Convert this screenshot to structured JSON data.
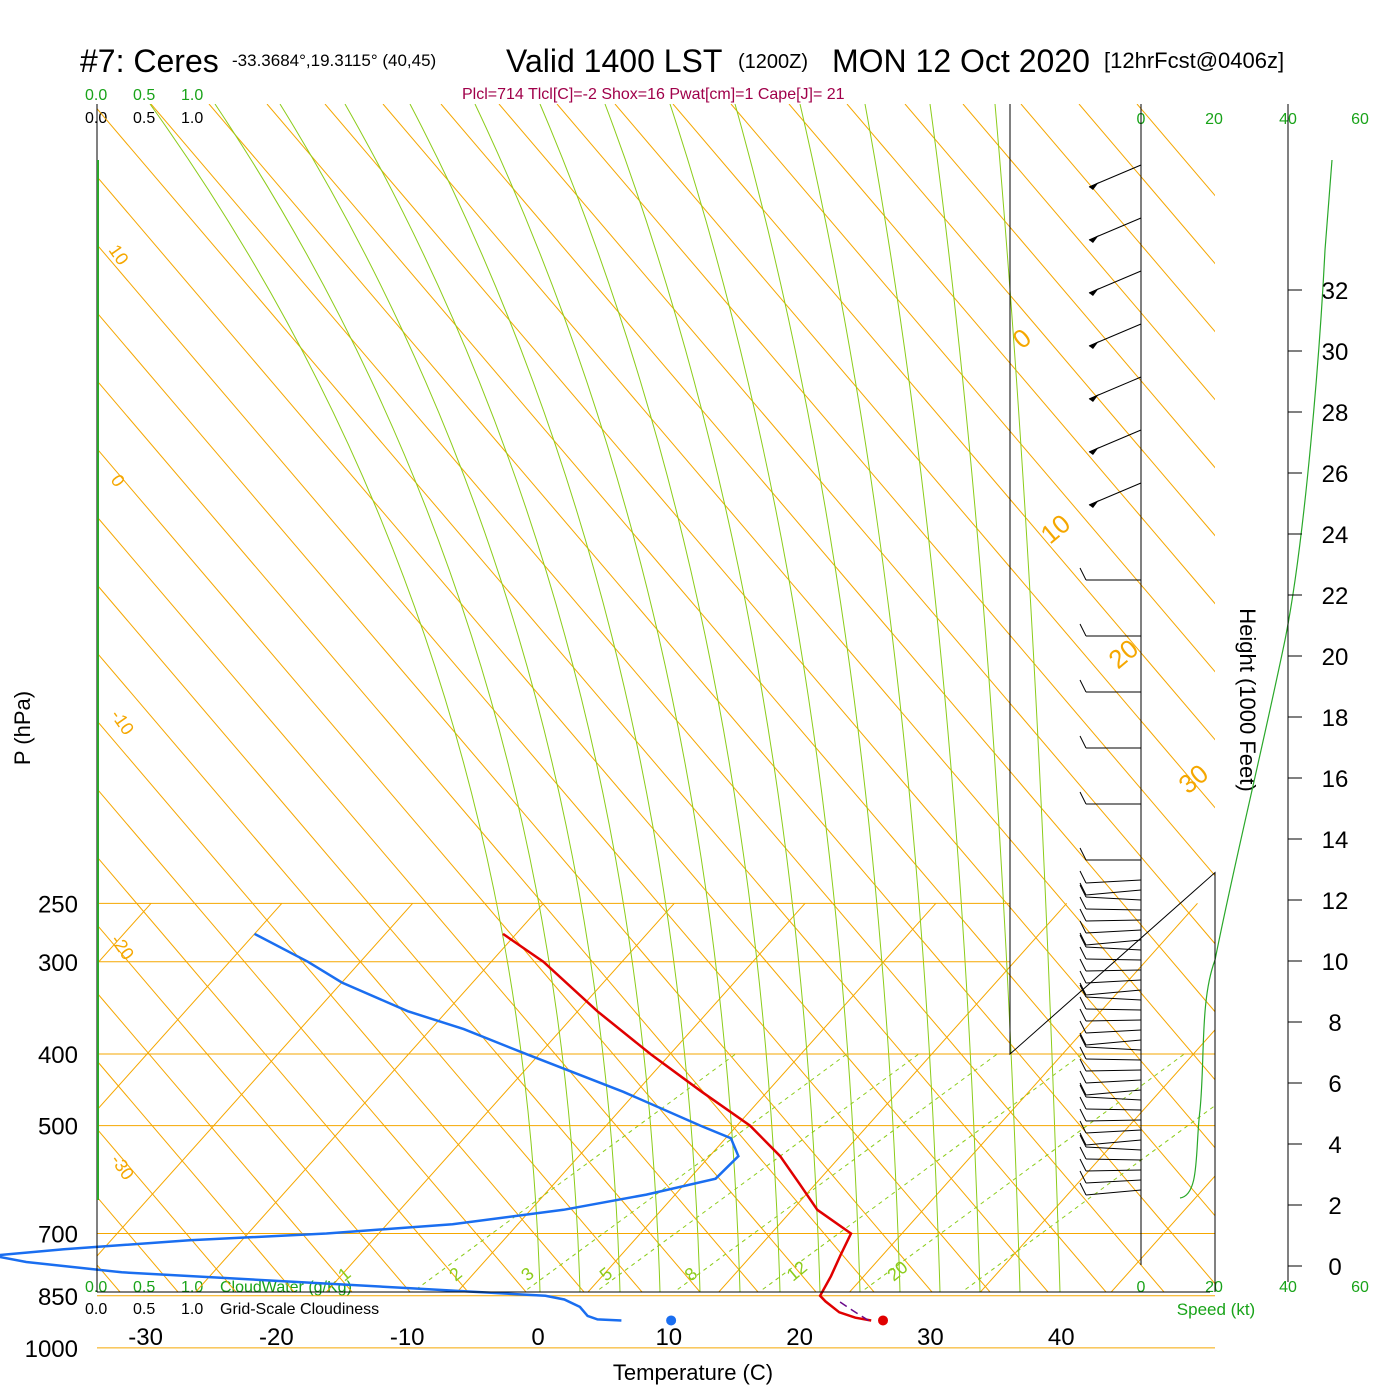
{
  "title": {
    "station": "#7: Ceres",
    "coords": "-33.3684°,19.3115° (40,45)",
    "valid": "Valid 1400 LST",
    "zulu": "(1200Z)",
    "date": "MON 12 Oct 2020",
    "forecast": "[12hrFcst@0406z]"
  },
  "indices_line": "Plcl=714 Tlcl[C]=-2 Shox=16 Pwat[cm]=1 Cape[J]= 21",
  "colors": {
    "isotherm": "#f5a700",
    "dry_adiabat": "#8ccc1a",
    "mixing_ratio": "#8ccc1a",
    "temperature": "#e00000",
    "dewpoint": "#1a6ef0",
    "parcel": "#6a0a8a",
    "green_text": "#19a319",
    "indices_text": "#a0004a"
  },
  "scales": {
    "cloudwater_top": [
      "0.0",
      "0.5",
      "1.0"
    ],
    "cloudiness_top": [
      "0.0",
      "0.5",
      "1.0"
    ],
    "cloudwater_bottom": [
      "0.0",
      "0.5",
      "1.0"
    ],
    "cloudiness_bottom": [
      "0.0",
      "0.5",
      "1.0"
    ],
    "cloudwater_label": "CloudWater (g/Kg)",
    "cloudiness_label": "Grid-Scale Cloudiness",
    "speed_ticks": [
      "0",
      "20",
      "40",
      "60"
    ],
    "speed_label": "Speed (kt)"
  },
  "chart_data": {
    "type": "skew-t",
    "xlabel": "Temperature (C)",
    "ylabel": "P (hPa)",
    "y2label": "Height (1000 Feet)",
    "pressure_ticks": [
      250,
      300,
      400,
      500,
      700,
      850,
      1000
    ],
    "temperature_ticks": [
      -30,
      -20,
      -10,
      0,
      10,
      20,
      30,
      40
    ],
    "height_ticks": [
      0,
      2,
      4,
      6,
      8,
      10,
      12,
      14,
      16,
      18,
      20,
      22,
      24,
      26,
      28,
      30,
      32
    ],
    "isotherm_labels_left": [
      "10",
      "0",
      "-10",
      "-20",
      "-30"
    ],
    "isotherm_labels_right": [
      "0",
      "10",
      "20",
      "30"
    ],
    "mixing_ratio_labels": [
      "1",
      "2",
      "3",
      "5",
      "8",
      "12",
      "20"
    ],
    "temperature_profile": [
      {
        "p": 918,
        "t": 23.6
      },
      {
        "p": 910,
        "t": 22.2
      },
      {
        "p": 895,
        "t": 20.6
      },
      {
        "p": 865,
        "t": 18.8
      },
      {
        "p": 850,
        "t": 18.0
      },
      {
        "p": 800,
        "t": 17.5
      },
      {
        "p": 750,
        "t": 16.8
      },
      {
        "p": 700,
        "t": 16.1
      },
      {
        "p": 650,
        "t": 11.9
      },
      {
        "p": 600,
        "t": 8.8
      },
      {
        "p": 550,
        "t": 5.4
      },
      {
        "p": 500,
        "t": 1.0
      },
      {
        "p": 450,
        "t": -5.0
      },
      {
        "p": 400,
        "t": -11.5
      },
      {
        "p": 350,
        "t": -18.5
      },
      {
        "p": 300,
        "t": -26.0
      },
      {
        "p": 275,
        "t": -31.0
      }
    ],
    "dewpoint_profile": [
      {
        "p": 918,
        "td": 4.5
      },
      {
        "p": 915,
        "td": 2.6
      },
      {
        "p": 905,
        "td": 1.6
      },
      {
        "p": 880,
        "td": 0.4
      },
      {
        "p": 860,
        "td": -1.3
      },
      {
        "p": 850,
        "td": -3.0
      },
      {
        "p": 830,
        "td": -14.0
      },
      {
        "p": 790,
        "td": -37.0
      },
      {
        "p": 765,
        "td": -45.0
      },
      {
        "p": 750,
        "td": -48.0
      },
      {
        "p": 735,
        "td": -43.0
      },
      {
        "p": 715,
        "td": -34.0
      },
      {
        "p": 700,
        "td": -24.0
      },
      {
        "p": 680,
        "td": -15.0
      },
      {
        "p": 650,
        "td": -7.5
      },
      {
        "p": 620,
        "td": -2.2
      },
      {
        "p": 590,
        "td": 2.0
      },
      {
        "p": 550,
        "td": 2.2
      },
      {
        "p": 520,
        "td": 0.4
      },
      {
        "p": 500,
        "td": -2.8
      },
      {
        "p": 450,
        "td": -11.0
      },
      {
        "p": 400,
        "td": -21.0
      },
      {
        "p": 370,
        "td": -27.5
      },
      {
        "p": 350,
        "td": -33.0
      },
      {
        "p": 320,
        "td": -40.0
      },
      {
        "p": 300,
        "td": -44.0
      },
      {
        "p": 275,
        "td": -50.0
      }
    ],
    "parcel_path": [
      {
        "p": 918,
        "t": 23.4
      },
      {
        "p": 890,
        "t": 21.5
      },
      {
        "p": 860,
        "t": 19.5
      }
    ],
    "surface_temperature": {
      "p": 918,
      "t": 24.5
    },
    "surface_dewpoint": {
      "p": 918,
      "td": 8.3
    },
    "terrain_outline_heights_kft": [
      12.9,
      22.9
    ]
  }
}
